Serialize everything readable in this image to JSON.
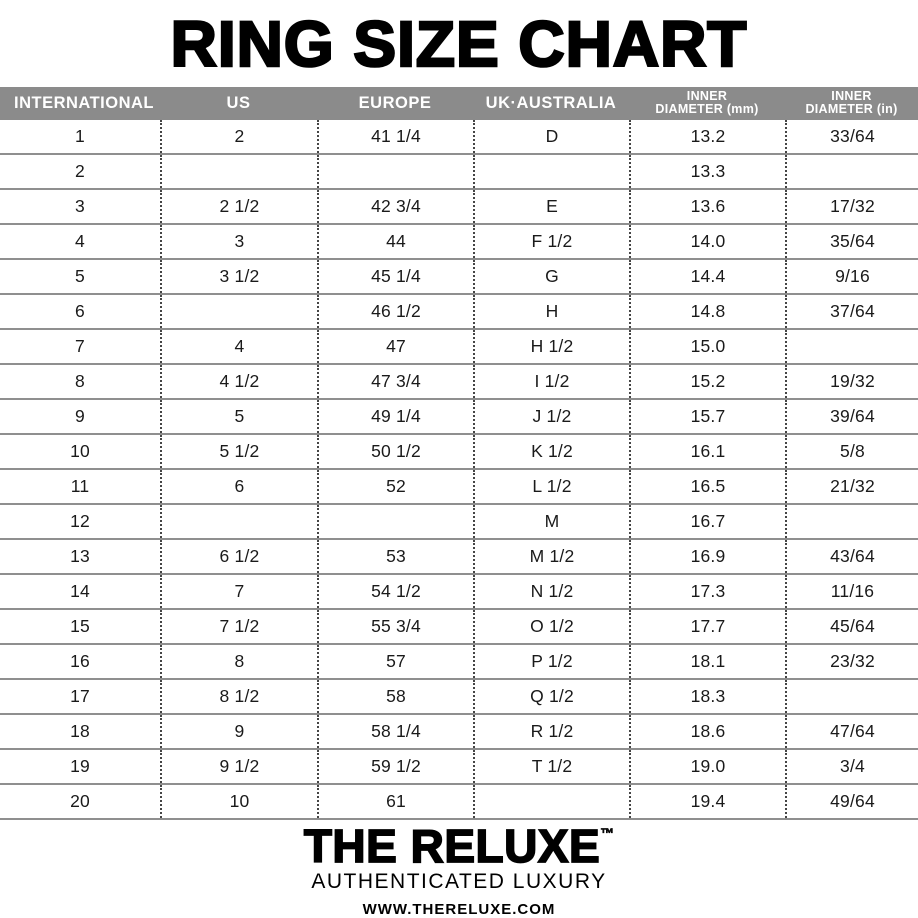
{
  "title": "RING SIZE CHART",
  "chart_data": {
    "type": "table",
    "title": "RING SIZE CHART",
    "columns": [
      {
        "line1": "INTERNATIONAL",
        "line2": ""
      },
      {
        "line1": "US",
        "line2": ""
      },
      {
        "line1": "EUROPE",
        "line2": ""
      },
      {
        "line1": "UK·AUSTRALIA",
        "line2": ""
      },
      {
        "line1": "INNER",
        "line2": "DIAMETER (mm)"
      },
      {
        "line1": "INNER",
        "line2": "DIAMETER (in)"
      }
    ],
    "rows": [
      [
        "1",
        "2",
        "41 1/4",
        "D",
        "13.2",
        "33/64"
      ],
      [
        "2",
        "",
        "",
        "",
        "13.3",
        ""
      ],
      [
        "3",
        "2 1/2",
        "42 3/4",
        "E",
        "13.6",
        "17/32"
      ],
      [
        "4",
        "3",
        "44",
        "F 1/2",
        "14.0",
        "35/64"
      ],
      [
        "5",
        "3 1/2",
        "45 1/4",
        "G",
        "14.4",
        "9/16"
      ],
      [
        "6",
        "",
        "46 1/2",
        "H",
        "14.8",
        "37/64"
      ],
      [
        "7",
        "4",
        "47",
        "H 1/2",
        "15.0",
        ""
      ],
      [
        "8",
        "4 1/2",
        "47 3/4",
        "I 1/2",
        "15.2",
        "19/32"
      ],
      [
        "9",
        "5",
        "49 1/4",
        "J 1/2",
        "15.7",
        "39/64"
      ],
      [
        "10",
        "5 1/2",
        "50 1/2",
        "K 1/2",
        "16.1",
        "5/8"
      ],
      [
        "11",
        "6",
        "52",
        "L 1/2",
        "16.5",
        "21/32"
      ],
      [
        "12",
        "",
        "",
        "M",
        "16.7",
        ""
      ],
      [
        "13",
        "6 1/2",
        "53",
        "M 1/2",
        "16.9",
        "43/64"
      ],
      [
        "14",
        "7",
        "54 1/2",
        "N 1/2",
        "17.3",
        "11/16"
      ],
      [
        "15",
        "7 1/2",
        "55 3/4",
        "O 1/2",
        "17.7",
        "45/64"
      ],
      [
        "16",
        "8",
        "57",
        "P 1/2",
        "18.1",
        "23/32"
      ],
      [
        "17",
        "8 1/2",
        "58",
        "Q 1/2",
        "18.3",
        ""
      ],
      [
        "18",
        "9",
        "58 1/4",
        "R 1/2",
        "18.6",
        "47/64"
      ],
      [
        "19",
        "9 1/2",
        "59 1/2",
        "T 1/2",
        "19.0",
        "3/4"
      ],
      [
        "20",
        "10",
        "61",
        "",
        "19.4",
        "49/64"
      ]
    ],
    "layout": {
      "header_bg": "#8b8b8b",
      "header_text_color": "#ffffff",
      "row_separator_color": "#8f8f8f",
      "column_separator_style": "dotted"
    }
  },
  "footer": {
    "brand": "THE RELUXE",
    "trademark": "™",
    "tagline": "AUTHENTICATED LUXURY",
    "website": "WWW.THERELUXE.COM"
  }
}
